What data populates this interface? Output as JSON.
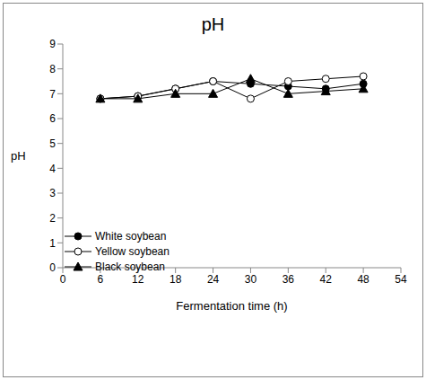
{
  "chart_data": {
    "type": "line",
    "title": "pH",
    "x_label": "Fermentation time (h)",
    "y_label": "pH",
    "x": [
      6,
      12,
      18,
      24,
      30,
      36,
      42,
      48
    ],
    "xlim": [
      0,
      54
    ],
    "xticks": [
      0,
      6,
      12,
      18,
      24,
      30,
      36,
      42,
      48,
      54
    ],
    "ylim": [
      0,
      9
    ],
    "yticks": [
      0,
      1,
      2,
      3,
      4,
      5,
      6,
      7,
      8,
      9
    ],
    "grid": false,
    "legend": "lower left",
    "series": [
      {
        "name": "White soybean",
        "color": "#000000",
        "marker": "filled_circle",
        "values": [
          6.8,
          6.9,
          7.2,
          7.5,
          7.4,
          7.3,
          7.2,
          7.4
        ]
      },
      {
        "name": "Yellow soybean",
        "color": "#000000",
        "marker": "open_circle",
        "values": [
          6.8,
          6.9,
          7.2,
          7.5,
          6.8,
          7.5,
          7.6,
          7.7
        ]
      },
      {
        "name": "Black soybean",
        "color": "#000000",
        "marker": "triangle",
        "values": [
          6.8,
          6.8,
          7.0,
          7.0,
          7.6,
          7.0,
          7.1,
          7.2
        ]
      }
    ]
  }
}
